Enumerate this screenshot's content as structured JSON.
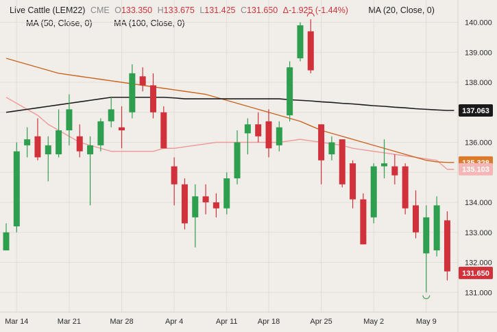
{
  "legend": {
    "symbol": "Live Cattle (LEM22)",
    "exchange": "CME",
    "open_label": "O",
    "open": "133.350",
    "high_label": "H",
    "high": "133.675",
    "low_label": "L",
    "low": "131.425",
    "close_label": "C",
    "close": "131.650",
    "change": "Δ-1.925 (-1.44%)",
    "ma20": "MA (20, Close, 0)",
    "ma50": "MA (50, Close, 0)",
    "ma100": "MA (100, Close, 0)"
  },
  "colors": {
    "up": "#2e9e4f",
    "down": "#d0313b",
    "ma20": "#ee9a9a",
    "ma50": "#c8641f",
    "ma100": "#1a1a1a",
    "background": "#f1ede8"
  },
  "chart_data": {
    "type": "candlestick",
    "ylim": [
      130.4,
      140.4
    ],
    "y_ticks": [
      "140.000",
      "139.000",
      "138.000",
      "137.000",
      "136.000",
      "135.000",
      "134.000",
      "133.000",
      "132.000",
      "131.000"
    ],
    "x_ticks": [
      {
        "label": "Mar 14",
        "index": 1
      },
      {
        "label": "Mar 21",
        "index": 6
      },
      {
        "label": "Mar 28",
        "index": 11
      },
      {
        "label": "Apr 4",
        "index": 16
      },
      {
        "label": "Apr 11",
        "index": 21
      },
      {
        "label": "Apr 18",
        "index": 25
      },
      {
        "label": "Apr 25",
        "index": 30
      },
      {
        "label": "May 2",
        "index": 35
      },
      {
        "label": "May 9",
        "index": 40
      }
    ],
    "candles": [
      {
        "o": 132.4,
        "h": 133.3,
        "l": 132.4,
        "c": 133.0
      },
      {
        "o": 133.2,
        "h": 136.0,
        "l": 133.0,
        "c": 135.7
      },
      {
        "o": 135.9,
        "h": 136.5,
        "l": 135.5,
        "c": 136.1
      },
      {
        "o": 136.2,
        "h": 136.8,
        "l": 135.4,
        "c": 135.5
      },
      {
        "o": 135.6,
        "h": 136.2,
        "l": 134.7,
        "c": 135.9
      },
      {
        "o": 135.6,
        "h": 137.1,
        "l": 135.5,
        "c": 136.4
      },
      {
        "o": 136.4,
        "h": 137.6,
        "l": 135.9,
        "c": 137.1
      },
      {
        "o": 136.2,
        "h": 136.6,
        "l": 135.5,
        "c": 135.7
      },
      {
        "o": 135.6,
        "h": 136.2,
        "l": 133.9,
        "c": 135.9
      },
      {
        "o": 135.9,
        "h": 136.8,
        "l": 135.7,
        "c": 136.7
      },
      {
        "o": 136.7,
        "h": 137.5,
        "l": 136.5,
        "c": 137.1
      },
      {
        "o": 136.5,
        "h": 137.2,
        "l": 135.8,
        "c": 136.4
      },
      {
        "o": 137.0,
        "h": 138.6,
        "l": 136.8,
        "c": 138.3
      },
      {
        "o": 138.2,
        "h": 138.5,
        "l": 137.7,
        "c": 137.9
      },
      {
        "o": 137.9,
        "h": 138.3,
        "l": 136.8,
        "c": 137.0
      },
      {
        "o": 137.0,
        "h": 137.2,
        "l": 135.8,
        "c": 135.8
      },
      {
        "o": 135.2,
        "h": 135.5,
        "l": 133.9,
        "c": 134.6
      },
      {
        "o": 134.6,
        "h": 134.8,
        "l": 133.1,
        "c": 133.3
      },
      {
        "o": 133.5,
        "h": 134.6,
        "l": 132.5,
        "c": 134.2
      },
      {
        "o": 134.2,
        "h": 134.6,
        "l": 133.6,
        "c": 134.0
      },
      {
        "o": 134.0,
        "h": 134.3,
        "l": 133.5,
        "c": 133.8
      },
      {
        "o": 133.8,
        "h": 135.0,
        "l": 133.6,
        "c": 134.8
      },
      {
        "o": 134.8,
        "h": 136.4,
        "l": 134.6,
        "c": 136.0
      },
      {
        "o": 136.3,
        "h": 136.8,
        "l": 135.6,
        "c": 136.6
      },
      {
        "o": 136.6,
        "h": 137.0,
        "l": 136.0,
        "c": 136.2
      },
      {
        "o": 136.7,
        "h": 137.1,
        "l": 135.5,
        "c": 135.8
      },
      {
        "o": 135.9,
        "h": 136.7,
        "l": 135.7,
        "c": 136.5
      },
      {
        "o": 136.9,
        "h": 138.7,
        "l": 136.7,
        "c": 138.5
      },
      {
        "o": 138.8,
        "h": 140.0,
        "l": 138.7,
        "c": 139.9
      },
      {
        "o": 139.7,
        "h": 140.1,
        "l": 138.3,
        "c": 138.4
      },
      {
        "o": 136.6,
        "h": 136.6,
        "l": 134.6,
        "c": 135.4
      },
      {
        "o": 135.6,
        "h": 136.2,
        "l": 135.4,
        "c": 136.0
      },
      {
        "o": 136.1,
        "h": 136.1,
        "l": 134.5,
        "c": 134.6
      },
      {
        "o": 135.3,
        "h": 135.4,
        "l": 133.8,
        "c": 134.1
      },
      {
        "o": 134.1,
        "h": 134.3,
        "l": 132.6,
        "c": 132.6
      },
      {
        "o": 133.5,
        "h": 135.3,
        "l": 133.3,
        "c": 135.2
      },
      {
        "o": 135.2,
        "h": 136.1,
        "l": 134.8,
        "c": 135.3
      },
      {
        "o": 135.2,
        "h": 135.6,
        "l": 134.6,
        "c": 134.9
      },
      {
        "o": 135.2,
        "h": 135.3,
        "l": 133.6,
        "c": 133.8
      },
      {
        "o": 133.9,
        "h": 134.4,
        "l": 132.8,
        "c": 133.0
      },
      {
        "o": 132.3,
        "h": 133.9,
        "l": 131.0,
        "c": 133.5
      },
      {
        "o": 132.4,
        "h": 134.2,
        "l": 132.2,
        "c": 133.9
      },
      {
        "o": 133.4,
        "h": 133.7,
        "l": 131.4,
        "c": 131.7
      }
    ],
    "ma20": [
      137.5,
      137.3,
      137.1,
      136.9,
      136.6,
      136.4,
      136.2,
      136.0,
      135.9,
      135.8,
      135.7,
      135.7,
      135.7,
      135.7,
      135.7,
      135.8,
      135.8,
      135.85,
      135.9,
      135.95,
      136.0,
      136.0,
      136.0,
      136.0,
      136.0,
      136.0,
      136.0,
      136.05,
      136.1,
      136.05,
      136.0,
      135.95,
      135.9,
      135.8,
      135.75,
      135.7,
      135.65,
      135.6,
      135.55,
      135.5,
      135.45,
      135.4,
      135.1
    ],
    "ma50": [
      138.8,
      138.7,
      138.6,
      138.5,
      138.4,
      138.3,
      138.25,
      138.2,
      138.15,
      138.1,
      138.05,
      138.0,
      137.95,
      137.9,
      137.85,
      137.8,
      137.75,
      137.7,
      137.65,
      137.6,
      137.5,
      137.4,
      137.3,
      137.2,
      137.1,
      137.0,
      136.9,
      136.8,
      136.7,
      136.55,
      136.4,
      136.3,
      136.2,
      136.1,
      136.0,
      135.9,
      135.8,
      135.7,
      135.6,
      135.5,
      135.4,
      135.35,
      135.33
    ],
    "ma100": [
      137.0,
      137.05,
      137.1,
      137.15,
      137.2,
      137.25,
      137.3,
      137.35,
      137.4,
      137.45,
      137.5,
      137.5,
      137.5,
      137.5,
      137.5,
      137.5,
      137.48,
      137.45,
      137.45,
      137.45,
      137.45,
      137.45,
      137.45,
      137.45,
      137.45,
      137.45,
      137.45,
      137.42,
      137.4,
      137.38,
      137.35,
      137.33,
      137.3,
      137.28,
      137.25,
      137.22,
      137.2,
      137.17,
      137.15,
      137.12,
      137.1,
      137.08,
      137.063
    ]
  },
  "price_tags": [
    {
      "label": "137.063",
      "bg": "#1a1a1a",
      "fg": "#ffffff",
      "value": 137.063
    },
    {
      "label": "135.328",
      "bg": "#d97a2c",
      "fg": "#ffffff",
      "value": 135.328
    },
    {
      "label": "135.103",
      "bg": "#f4b6b6",
      "fg": "#ffffff",
      "value": 135.103
    },
    {
      "label": "131.650",
      "bg": "#d0313b",
      "fg": "#ffffff",
      "value": 131.65
    }
  ]
}
